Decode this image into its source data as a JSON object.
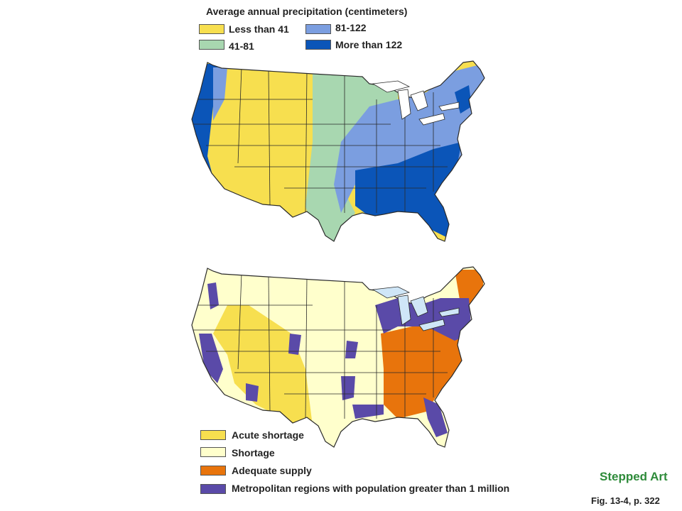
{
  "precip_legend": {
    "title": "Average annual precipitation (centimeters)",
    "items": [
      {
        "label": "Less than 41",
        "color": "#f7df4f"
      },
      {
        "label": "41-81",
        "color": "#a8d7b0"
      },
      {
        "label": "81-122",
        "color": "#7b9ee0"
      },
      {
        "label": "More than 122",
        "color": "#0b55b8"
      }
    ]
  },
  "supply_legend": {
    "items": [
      {
        "label": "Acute shortage",
        "color": "#f7df4f"
      },
      {
        "label": "Shortage",
        "color": "#ffffcc"
      },
      {
        "label": "Adequate supply",
        "color": "#e8740c"
      },
      {
        "label": "Metropolitan regions with population greater than 1 million",
        "color": "#5a4aa8"
      }
    ]
  },
  "footer": {
    "stepped_art": "Stepped Art",
    "figure_ref": "Fig. 13-4, p. 322"
  }
}
